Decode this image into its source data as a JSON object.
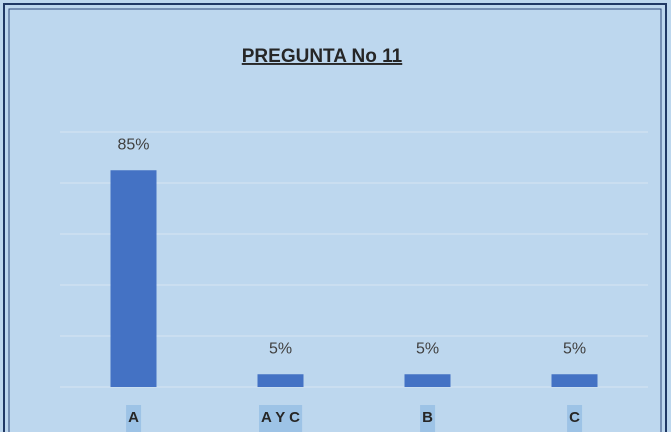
{
  "chart_data": {
    "type": "bar",
    "title": "PREGUNTA No 11",
    "categories": [
      "A",
      "A Y C",
      "B",
      "C"
    ],
    "values": [
      85,
      5,
      5,
      5
    ],
    "value_labels": [
      "85%",
      "5%",
      "5%",
      "5%"
    ],
    "color": "#4472c4",
    "ylim": [
      0,
      100
    ],
    "yticks": [
      0,
      20,
      40,
      60,
      80,
      100
    ],
    "grid": true
  }
}
